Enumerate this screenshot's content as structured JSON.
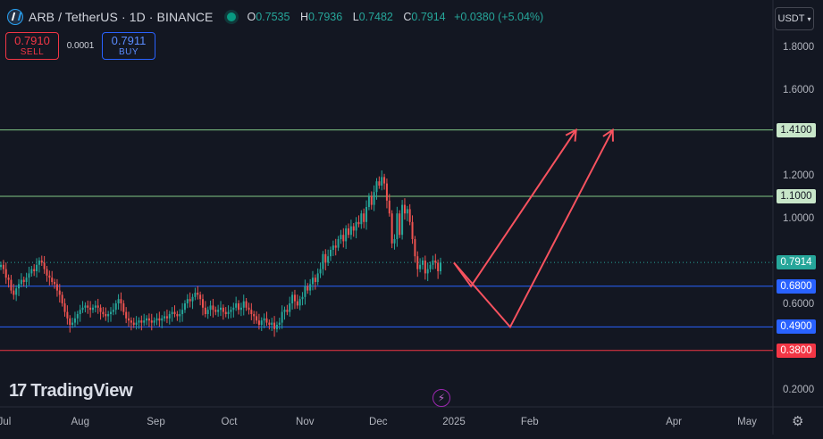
{
  "header": {
    "symbol_title": "ARB / TetherUS · 1D · BINANCE",
    "ohlc": {
      "o_label": "O",
      "o": "0.7535",
      "h_label": "H",
      "h": "0.7936",
      "l_label": "L",
      "l": "0.7482",
      "c_label": "C",
      "c": "0.7914",
      "change": "+0.0380 (+5.04%)"
    }
  },
  "trade": {
    "sell_price": "0.7910",
    "sell_label": "SELL",
    "spread": "0.0001",
    "buy_price": "0.7911",
    "buy_label": "BUY"
  },
  "currency_button": "USDT",
  "branding": "TradingView",
  "icons": {
    "symbol": "arbitrum-logo-icon",
    "status": "market-open-dot-icon",
    "currency_chevron": "chevron-down-icon",
    "replay": "lightning-bolt-icon",
    "settings": "gear-icon"
  },
  "colors": {
    "background": "#131722",
    "up": "#26a69a",
    "down": "#ef5350",
    "resistance_line": "#81c784",
    "support_line": "#2962ff",
    "stop_line": "#f23645",
    "projection_arrows": "#f7525f"
  },
  "chart_data": {
    "type": "candlestick",
    "y_axis": {
      "min": 0.2,
      "max": 1.8,
      "ticks": [
        1.8,
        1.6,
        1.2,
        1.0,
        0.6,
        0.2
      ],
      "tick_labels": [
        "1.8000",
        "1.6000",
        "1.2000",
        "1.0000",
        "0.6000",
        "0.2000"
      ]
    },
    "x_axis": {
      "ticks": [
        {
          "label": "Jul",
          "date": "2024-07-01"
        },
        {
          "label": "Aug",
          "date": "2024-08-01"
        },
        {
          "label": "Sep",
          "date": "2024-09-01"
        },
        {
          "label": "Oct",
          "date": "2024-10-01"
        },
        {
          "label": "Nov",
          "date": "2024-11-01"
        },
        {
          "label": "Dec",
          "date": "2024-12-01"
        },
        {
          "label": "2025",
          "date": "2025-01-01"
        },
        {
          "label": "Feb",
          "date": "2025-02-01"
        },
        {
          "label": "Apr",
          "date": "2025-04-01"
        },
        {
          "label": "May",
          "date": "2025-05-01"
        }
      ]
    },
    "horizontal_levels": [
      {
        "value": 1.41,
        "label": "1.4100",
        "style": "resistance"
      },
      {
        "value": 1.1,
        "label": "1.1000",
        "style": "resistance"
      },
      {
        "value": 0.68,
        "label": "0.6800",
        "style": "support"
      },
      {
        "value": 0.49,
        "label": "0.4900",
        "style": "support"
      },
      {
        "value": 0.38,
        "label": "0.3800",
        "style": "stop"
      }
    ],
    "last_price": {
      "value": 0.7914,
      "label": "0.7914"
    },
    "projection_paths": [
      {
        "points": [
          [
            "2025-01-01",
            0.79
          ],
          [
            "2025-01-08",
            0.68
          ],
          [
            "2025-02-20",
            1.41
          ]
        ]
      },
      {
        "points": [
          [
            "2025-01-01",
            0.79
          ],
          [
            "2025-01-24",
            0.49
          ],
          [
            "2025-03-07",
            1.41
          ]
        ]
      }
    ],
    "closes": [
      0.78,
      0.76,
      0.72,
      0.71,
      0.66,
      0.64,
      0.67,
      0.69,
      0.71,
      0.7,
      0.72,
      0.74,
      0.76,
      0.75,
      0.78,
      0.8,
      0.79,
      0.76,
      0.73,
      0.72,
      0.7,
      0.69,
      0.66,
      0.64,
      0.6,
      0.56,
      0.53,
      0.5,
      0.51,
      0.53,
      0.55,
      0.57,
      0.58,
      0.59,
      0.58,
      0.57,
      0.58,
      0.59,
      0.58,
      0.56,
      0.55,
      0.54,
      0.55,
      0.56,
      0.57,
      0.6,
      0.62,
      0.6,
      0.56,
      0.53,
      0.52,
      0.51,
      0.5,
      0.51,
      0.52,
      0.51,
      0.52,
      0.53,
      0.52,
      0.51,
      0.52,
      0.53,
      0.52,
      0.53,
      0.54,
      0.53,
      0.55,
      0.56,
      0.55,
      0.54,
      0.55,
      0.57,
      0.6,
      0.62,
      0.61,
      0.63,
      0.65,
      0.64,
      0.62,
      0.58,
      0.55,
      0.57,
      0.59,
      0.57,
      0.56,
      0.57,
      0.58,
      0.56,
      0.55,
      0.56,
      0.57,
      0.58,
      0.6,
      0.57,
      0.58,
      0.61,
      0.58,
      0.57,
      0.55,
      0.54,
      0.52,
      0.5,
      0.52,
      0.53,
      0.51,
      0.5,
      0.51,
      0.48,
      0.5,
      0.51,
      0.56,
      0.57,
      0.56,
      0.6,
      0.64,
      0.61,
      0.59,
      0.62,
      0.63,
      0.68,
      0.66,
      0.69,
      0.72,
      0.7,
      0.74,
      0.76,
      0.83,
      0.79,
      0.82,
      0.85,
      0.87,
      0.86,
      0.9,
      0.92,
      0.89,
      0.95,
      0.92,
      0.96,
      0.94,
      0.98,
      0.97,
      1.02,
      0.98,
      1.05,
      1.1,
      1.06,
      1.12,
      1.17,
      1.15,
      1.19,
      1.16,
      1.08,
      1.02,
      0.88,
      0.9,
      1.02,
      0.92,
      1.06,
      1.02,
      1.04,
      0.98,
      0.9,
      0.82,
      0.76,
      0.78,
      0.8,
      0.74,
      0.76,
      0.78,
      0.8,
      0.79,
      0.75,
      0.79
    ]
  }
}
